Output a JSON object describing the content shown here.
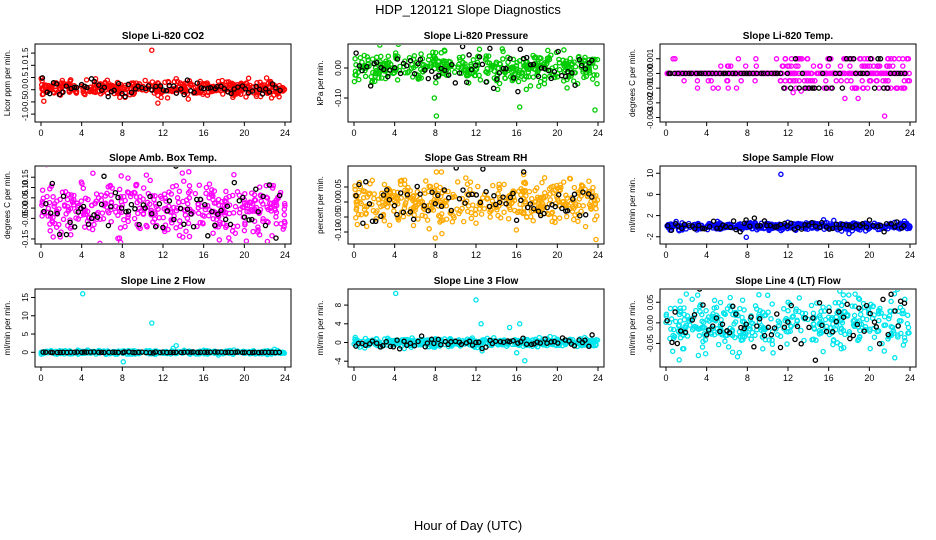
{
  "figure": {
    "title": "HDP_120121  Slope Diagnostics",
    "xlabel": "Hour of Day (UTC)"
  },
  "chart_data": [
    {
      "type": "scatter",
      "title": "Slope Li-820 CO2",
      "ylabel": "Licor ppm per min.",
      "color": "#ff0000",
      "xticks": [
        "0",
        "4",
        "8",
        "12",
        "16",
        "20",
        "24"
      ],
      "xlim": [
        0,
        24
      ],
      "yticks": [
        -1.0,
        -0.5,
        0.0,
        0.5,
        1.0,
        1.5
      ],
      "ytick_labels": [
        "-1.0",
        "-0.5",
        "0.0",
        "0.5",
        "1.0",
        "1.5"
      ],
      "ylim": [
        -1.2,
        1.75
      ],
      "center": 0.05,
      "spread": 0.15,
      "outliers": [
        [
          10.9,
          1.62
        ],
        [
          11.5,
          -0.55
        ],
        [
          13.3,
          0.45
        ],
        [
          2.9,
          0.4
        ]
      ],
      "black_center": 0.05,
      "black_spread": 0.18
    },
    {
      "type": "scatter",
      "title": "Slope Li-820 Pressure",
      "ylabel": "kPa per min.",
      "color": "#00cc00",
      "xticks": [
        "0",
        "4",
        "8",
        "12",
        "16",
        "20",
        "24"
      ],
      "xlim": [
        0,
        24
      ],
      "yticks": [
        -0.1,
        0.0
      ],
      "ytick_labels": [
        "-0.10",
        "0.00"
      ],
      "ylim": [
        -0.17,
        0.07
      ],
      "center": 0.0,
      "spread": 0.025,
      "outliers": [
        [
          8.1,
          -0.16
        ],
        [
          16.3,
          -0.13
        ],
        [
          23.7,
          -0.14
        ],
        [
          7.9,
          -0.1
        ],
        [
          4.1,
          0.05
        ],
        [
          13.0,
          0.04
        ]
      ],
      "black_center": 0.0,
      "black_spread": 0.03
    },
    {
      "type": "scatter",
      "title": "Slope Li-820 Temp.",
      "ylabel": "degrees C per min.",
      "color": "#ff00ff",
      "xticks": [
        "0",
        "4",
        "8",
        "12",
        "16",
        "20",
        "24"
      ],
      "xlim": [
        0,
        24
      ],
      "yticks": [
        -0.003,
        -0.002,
        -0.001,
        0.0,
        0.001
      ],
      "ytick_labels": [
        "-0.003",
        "-0.002",
        "-0.001",
        "0.000",
        "0.001"
      ],
      "ylim": [
        -0.0031,
        0.0018
      ],
      "levels": [
        0.0,
        0.0,
        0.0,
        -0.001,
        0.001,
        0.0005,
        -0.0005
      ],
      "outliers": [
        [
          21.5,
          -0.0029
        ],
        [
          17.6,
          -0.0017
        ],
        [
          18.9,
          -0.0017
        ],
        [
          12.5,
          -0.0013
        ],
        [
          13.3,
          -0.0012
        ]
      ],
      "black_levels": [
        0.0,
        0.0,
        -0.001,
        0.001
      ]
    },
    {
      "type": "scatter",
      "title": "Slope Amb. Box Temp.",
      "ylabel": "degrees C per min.",
      "color": "#ff00ff",
      "xticks": [
        "0",
        "4",
        "8",
        "12",
        "16",
        "20",
        "24"
      ],
      "xlim": [
        0,
        24
      ],
      "yticks": [
        -0.15,
        -0.05,
        0.0,
        0.05,
        0.1,
        0.15
      ],
      "ytick_labels": [
        "-0.15",
        "-0.05",
        "0.00",
        "0.05",
        "0.10",
        "0.15"
      ],
      "ylim": [
        -0.16,
        0.19
      ],
      "center": 0.0,
      "spread": 0.065,
      "outliers": [
        [
          13.9,
          0.17
        ],
        [
          21.5,
          -0.13
        ],
        [
          1.2,
          -0.14
        ],
        [
          1.9,
          -0.14
        ]
      ],
      "black_center": 0.0,
      "black_spread": 0.06
    },
    {
      "type": "scatter",
      "title": "Slope Gas Stream RH",
      "ylabel": "percent per min.",
      "color": "#ffaa00",
      "xticks": [
        "0",
        "4",
        "8",
        "12",
        "16",
        "20",
        "24"
      ],
      "xlim": [
        0,
        24
      ],
      "yticks": [
        -0.1,
        -0.05,
        0.0,
        0.05
      ],
      "ytick_labels": [
        "-0.10",
        "-0.05",
        "0.00",
        "0.05"
      ],
      "ylim": [
        -0.13,
        0.11
      ],
      "center": 0.0,
      "spread": 0.035,
      "outliers": [
        [
          8.0,
          -0.12
        ],
        [
          8.6,
          0.1
        ],
        [
          23.8,
          -0.125
        ],
        [
          11.0,
          0.08
        ]
      ],
      "black_center": 0.0,
      "black_spread": 0.04
    },
    {
      "type": "scatter",
      "title": "Slope Sample Flow",
      "ylabel": "ml/min per min.",
      "color": "#0000ff",
      "xticks": [
        "0",
        "4",
        "8",
        "12",
        "16",
        "20",
        "24"
      ],
      "xlim": [
        0,
        24
      ],
      "yticks": [
        -2,
        2,
        6,
        10
      ],
      "ytick_labels": [
        "-2",
        "2",
        "6",
        "10"
      ],
      "ylim": [
        -2.8,
        10.8
      ],
      "center": 0.0,
      "spread": 0.35,
      "outliers": [
        [
          11.3,
          9.8
        ],
        [
          7.9,
          -2.1
        ],
        [
          15.5,
          1.2
        ],
        [
          16.5,
          1.1
        ],
        [
          18.0,
          -1.4
        ]
      ],
      "black_center": 0.0,
      "black_spread": 0.4
    },
    {
      "type": "scatter",
      "title": "Slope Line 2 Flow",
      "ylabel": "ml/min per min.",
      "color": "#00e5ee",
      "xticks": [
        "0",
        "4",
        "8",
        "12",
        "16",
        "20",
        "24"
      ],
      "xlim": [
        0,
        24
      ],
      "yticks": [
        0,
        5,
        10,
        15
      ],
      "ytick_labels": [
        "0",
        "5",
        "10",
        "15"
      ],
      "ylim": [
        -3.2,
        16.5
      ],
      "center": 0.0,
      "spread": 0.25,
      "outliers": [
        [
          4.1,
          16.0
        ],
        [
          10.9,
          8.0
        ],
        [
          8.1,
          -2.6
        ],
        [
          13.3,
          1.8
        ],
        [
          13.0,
          1.1
        ]
      ],
      "black_center": 0.0,
      "black_spread": 0.05
    },
    {
      "type": "scatter",
      "title": "Slope Line 3 Flow",
      "ylabel": "ml/min per min.",
      "color": "#00e5ee",
      "xticks": [
        "0",
        "4",
        "8",
        "12",
        "16",
        "20",
        "24"
      ],
      "xlim": [
        0,
        24
      ],
      "yticks": [
        -4,
        0,
        4,
        8
      ],
      "ytick_labels": [
        "-4",
        "0",
        "4",
        "8"
      ],
      "ylim": [
        -4.6,
        10.8
      ],
      "center": 0.0,
      "spread": 0.45,
      "outliers": [
        [
          4.1,
          10.5
        ],
        [
          12.0,
          9.1
        ],
        [
          12.5,
          4.0
        ],
        [
          16.3,
          4.0
        ],
        [
          16.8,
          -3.9
        ],
        [
          16.0,
          -2.2
        ],
        [
          12.6,
          -1.8
        ],
        [
          15.3,
          3.2
        ]
      ],
      "black_center": 0.0,
      "black_spread": 0.6
    },
    {
      "type": "scatter",
      "title": "Slope Line 4 (LT) Flow",
      "ylabel": "ml/min per min.",
      "color": "#00e5ee",
      "xticks": [
        "0",
        "4",
        "8",
        "12",
        "16",
        "20",
        "24"
      ],
      "xlim": [
        0,
        24
      ],
      "yticks": [
        -0.05,
        0.0,
        0.05
      ],
      "ytick_labels": [
        "-0.05",
        "0.00",
        "0.05"
      ],
      "ylim": [
        -0.1,
        0.075
      ],
      "center": 0.0,
      "spread": 0.03,
      "outliers": [
        [
          2.0,
          0.07
        ],
        [
          18.6,
          0.07
        ],
        [
          1.3,
          -0.09
        ],
        [
          3.9,
          -0.075
        ],
        [
          22.5,
          -0.085
        ]
      ],
      "black_center": 0.0,
      "black_spread": 0.032
    }
  ]
}
